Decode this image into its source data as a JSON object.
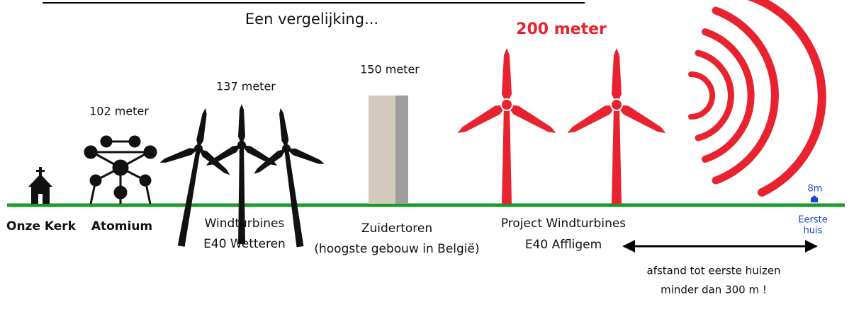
{
  "subtitle": "Een vergelijking...",
  "items": [
    {
      "label": [
        "Onze Kerk"
      ]
    },
    {
      "label": [
        "Atomium"
      ],
      "height": "102 meter"
    },
    {
      "label": [
        "Windturbines",
        "E40 Wetteren"
      ],
      "height": "137 meter"
    },
    {
      "label": [
        "Zuidertoren",
        "(hoogste gebouw in België)"
      ],
      "height": "150 meter"
    },
    {
      "label": [
        "Project Windturbines",
        "E40 Affligem"
      ],
      "height": "200 meter"
    },
    {
      "label": [
        "Eerste",
        "huis"
      ],
      "height": "8m"
    }
  ],
  "distance_note": [
    "afstand tot eerste huizen",
    "minder dan 300 m !"
  ]
}
